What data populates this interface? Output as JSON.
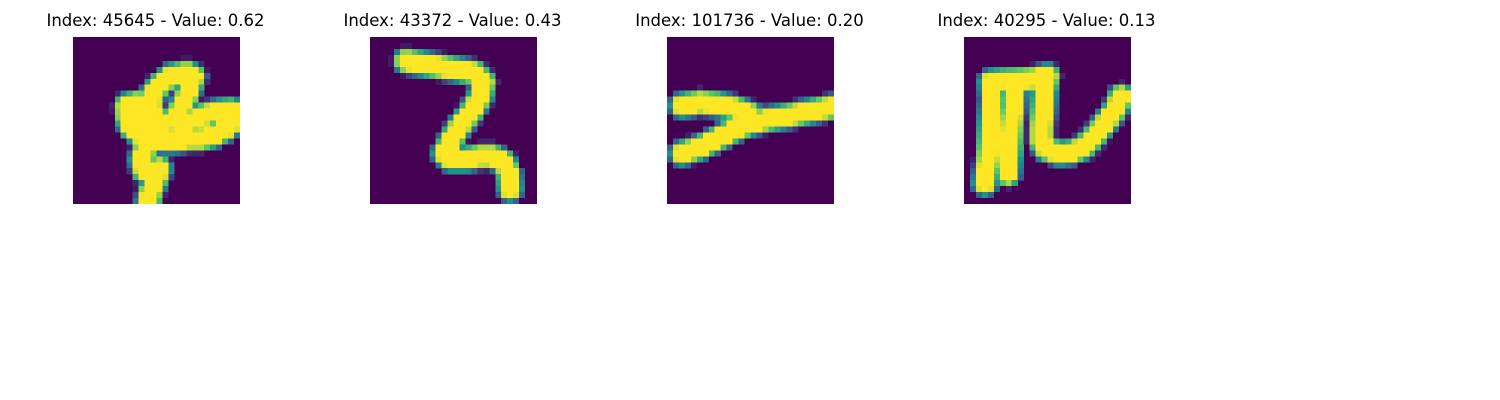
{
  "chart_data": [
    {
      "type": "heatmap",
      "title": "Index: 45645 - Value: 0.62",
      "index": 45645,
      "value": 0.62,
      "grid": false,
      "colormap": [
        "#440154",
        "#3b528b",
        "#21918c",
        "#5ec962",
        "#fde725"
      ],
      "strokes": [
        [
          [
            12.5,
            17.5
          ],
          [
            11.5,
            20.5
          ],
          [
            12,
            22.5
          ],
          [
            14.5,
            22
          ],
          [
            14,
            23.5
          ],
          [
            13,
            26
          ],
          [
            12.5,
            28.5
          ]
        ],
        [
          [
            14.2,
            15.4
          ],
          [
            13.5,
            13.5
          ],
          [
            12.8,
            10.5
          ],
          [
            14.5,
            8
          ],
          [
            16.5,
            6.5
          ],
          [
            19,
            6
          ],
          [
            20.2,
            6.6
          ],
          [
            18.8,
            10.5
          ],
          [
            17.3,
            13.5
          ],
          [
            18.5,
            14.7
          ],
          [
            21.8,
            13.2
          ],
          [
            24.5,
            12.5
          ],
          [
            26.5,
            12.3
          ],
          [
            27,
            14
          ],
          [
            25.5,
            15.5
          ],
          [
            23.5,
            16.5
          ],
          [
            21.5,
            17
          ],
          [
            19.5,
            17
          ]
        ],
        [
          [
            14.2,
            15.4
          ],
          [
            12.2,
            14.6
          ],
          [
            10.2,
            13.7
          ],
          [
            9.3,
            11.8
          ],
          [
            10.4,
            11.1
          ],
          [
            11.1,
            11.9
          ],
          [
            13.3,
            12.6
          ],
          [
            15.2,
            14.9
          ]
        ],
        [
          [
            19.5,
            17
          ],
          [
            16.8,
            17.4
          ],
          [
            13.8,
            17.3
          ],
          [
            11.5,
            16.5
          ],
          [
            9.7,
            15.1
          ],
          [
            9.1,
            13.3
          ],
          [
            9,
            11.5
          ]
        ]
      ]
    },
    {
      "type": "heatmap",
      "title": "Index: 43372 - Value: 0.43",
      "index": 43372,
      "value": 0.43,
      "grid": false,
      "colormap": [
        "#440154",
        "#3b528b",
        "#21918c",
        "#5ec962",
        "#fde725"
      ],
      "strokes": [
        [
          [
            6,
            4
          ],
          [
            9,
            4.5
          ],
          [
            12,
            5
          ],
          [
            15,
            5.5
          ],
          [
            17.5,
            6
          ],
          [
            19,
            7.5
          ],
          [
            18.5,
            10
          ],
          [
            17,
            12.5
          ],
          [
            15,
            15
          ],
          [
            13.5,
            17.5
          ],
          [
            12.5,
            19.5
          ],
          [
            13.5,
            20.5
          ],
          [
            16,
            20.5
          ],
          [
            18.5,
            20
          ],
          [
            20.5,
            20
          ],
          [
            22.5,
            21
          ],
          [
            23.3,
            23
          ],
          [
            23.5,
            25.5
          ]
        ]
      ]
    },
    {
      "type": "heatmap",
      "title": "Index: 101736 - Value: 0.20",
      "index": 101736,
      "value": 0.2,
      "grid": false,
      "colormap": [
        "#440154",
        "#3b528b",
        "#21918c",
        "#5ec962",
        "#fde725"
      ],
      "strokes": [
        [
          [
            2.5,
            11.5
          ],
          [
            5.5,
            11
          ],
          [
            8.5,
            11.3
          ],
          [
            11.5,
            12
          ],
          [
            14,
            13
          ]
        ],
        [
          [
            2.5,
            19.5
          ],
          [
            5.5,
            18.5
          ],
          [
            8.5,
            17
          ],
          [
            11.5,
            15.5
          ],
          [
            14,
            14.5
          ],
          [
            17,
            13.8
          ],
          [
            20,
            13.3
          ],
          [
            23,
            12.7
          ],
          [
            25.5,
            12.2
          ],
          [
            27.5,
            11.8
          ]
        ]
      ]
    },
    {
      "type": "heatmap",
      "title": "Index: 40295 - Value: 0.13",
      "index": 40295,
      "value": 0.13,
      "grid": false,
      "colormap": [
        "#440154",
        "#3b528b",
        "#21918c",
        "#5ec962",
        "#fde725"
      ],
      "strokes": [
        [
          [
            3.5,
            24.5
          ],
          [
            4,
            21
          ],
          [
            4.3,
            17.5
          ],
          [
            4.5,
            14
          ],
          [
            4.8,
            10.5
          ],
          [
            4.5,
            7.5
          ],
          [
            7,
            7.3
          ],
          [
            9.5,
            7.2
          ],
          [
            12,
            7
          ],
          [
            14,
            6.5
          ]
        ],
        [
          [
            8.5,
            8
          ],
          [
            8.3,
            11
          ],
          [
            8,
            14
          ],
          [
            7.8,
            17
          ],
          [
            7.5,
            20.5
          ],
          [
            7.3,
            23
          ]
        ],
        [
          [
            14,
            6.5
          ],
          [
            13.5,
            9
          ],
          [
            13.3,
            12
          ],
          [
            13,
            15
          ],
          [
            13,
            17.5
          ],
          [
            13.8,
            18.8
          ],
          [
            16,
            19.5
          ],
          [
            18,
            19.3
          ],
          [
            20,
            18.5
          ],
          [
            22,
            16.5
          ],
          [
            24,
            14
          ],
          [
            25.5,
            12
          ],
          [
            26.3,
            10
          ]
        ]
      ]
    }
  ]
}
